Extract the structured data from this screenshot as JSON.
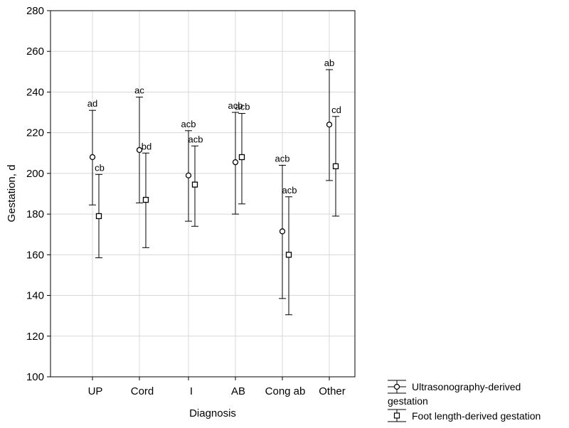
{
  "chart_data": {
    "type": "errorbar",
    "xlabel": "Diagnosis",
    "ylabel": "Gestation, d",
    "ylim": [
      100,
      280
    ],
    "yticks": [
      100,
      120,
      140,
      160,
      180,
      200,
      220,
      240,
      260,
      280
    ],
    "grid": true,
    "legend_position": "bottom-right, outside plot",
    "categories": [
      "UP",
      "Cord",
      "I",
      "AB",
      "Cong ab",
      "Other"
    ],
    "series": [
      {
        "name": "Ultrasonography-derived gestation",
        "marker": "circle",
        "mean": [
          208,
          211.5,
          199,
          205.5,
          171.5,
          224
        ],
        "lower": [
          184.5,
          185.5,
          176.5,
          180,
          138.5,
          196.5
        ],
        "upper": [
          231,
          237.5,
          221,
          230,
          204,
          251
        ],
        "labels": [
          "ad",
          "ac",
          "acb",
          "acb",
          "acb",
          "ab"
        ]
      },
      {
        "name": "Foot length-derived gestation",
        "marker": "square",
        "mean": [
          179,
          187,
          194.5,
          208,
          160,
          203.5
        ],
        "lower": [
          158.5,
          163.5,
          174,
          185,
          130.5,
          179
        ],
        "upper": [
          199.5,
          210,
          213.5,
          229.5,
          188.5,
          228
        ],
        "labels": [
          "cb",
          "bd",
          "acb",
          "acb",
          "acb",
          "cd"
        ]
      }
    ]
  }
}
